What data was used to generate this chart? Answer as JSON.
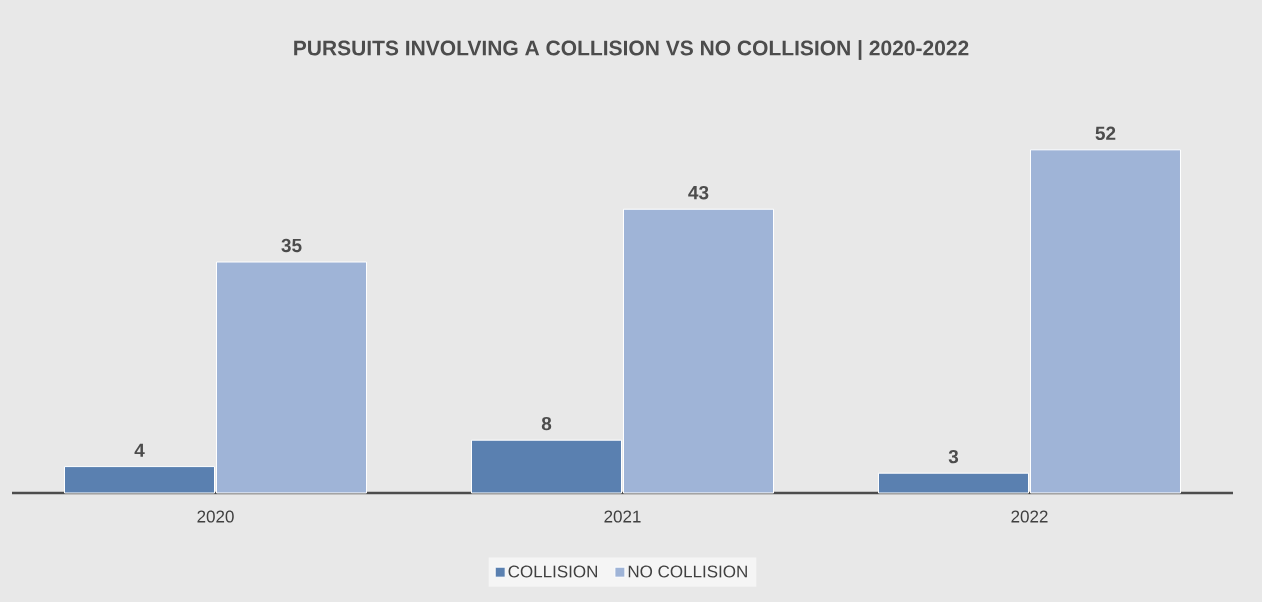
{
  "chart_data": {
    "type": "bar",
    "title": "PURSUITS INVOLVING A COLLISION VS NO COLLISION | 2020-2022",
    "categories": [
      "2020",
      "2021",
      "2022"
    ],
    "series": [
      {
        "name": "COLLISION",
        "color": "#5a80b0",
        "values": [
          4,
          8,
          3
        ]
      },
      {
        "name": "NO COLLISION",
        "color": "#9fb4d7",
        "values": [
          35,
          43,
          52
        ]
      }
    ],
    "tick_labels": "x",
    "data_labels": true,
    "legend": "bottom"
  }
}
